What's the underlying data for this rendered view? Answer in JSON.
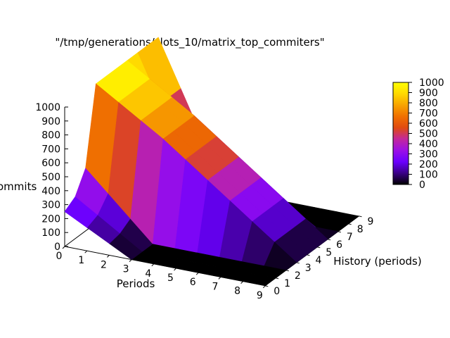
{
  "chart_data": {
    "type": "surface",
    "title": "\"/tmp/generations/slots_10/matrix_top_commiters\"",
    "xlabel": "Periods",
    "ylabel": "History (periods)",
    "zlabel": "ommits",
    "x_ticks": [
      "0",
      "1",
      "2",
      "3",
      "4",
      "5",
      "6",
      "7",
      "8",
      "9"
    ],
    "y_ticks": [
      "0",
      "1",
      "2",
      "3",
      "4",
      "5",
      "6",
      "7",
      "8",
      "9"
    ],
    "z_ticks": [
      "0",
      "100",
      "200",
      "300",
      "400",
      "500",
      "600",
      "700",
      "800",
      "900",
      "1000"
    ],
    "zlim": [
      0,
      1000
    ],
    "colorbar": {
      "ticks": [
        "0",
        "100",
        "200",
        "300",
        "400",
        "500",
        "600",
        "700",
        "800",
        "900",
        "1000"
      ],
      "range": [
        0,
        1000
      ],
      "palette": [
        "#000000",
        "#3a0086",
        "#6a00ff",
        "#9b10e6",
        "#c2279c",
        "#e04a10",
        "#f07000",
        "#f8a300",
        "#ffd900",
        "#ffff00"
      ]
    },
    "surface_rows": [
      {
        "x": 0,
        "z": [
          250,
          300,
          450,
          1000,
          1000,
          1000,
          1000,
          1000,
          1000,
          1000
        ]
      },
      {
        "x": 3,
        "z": [
          0,
          0,
          0,
          700,
          700,
          700,
          700,
          0,
          0,
          0
        ]
      },
      {
        "x": 9,
        "z": [
          0,
          0,
          0,
          0,
          0,
          0,
          0,
          0,
          0,
          0
        ]
      }
    ]
  }
}
